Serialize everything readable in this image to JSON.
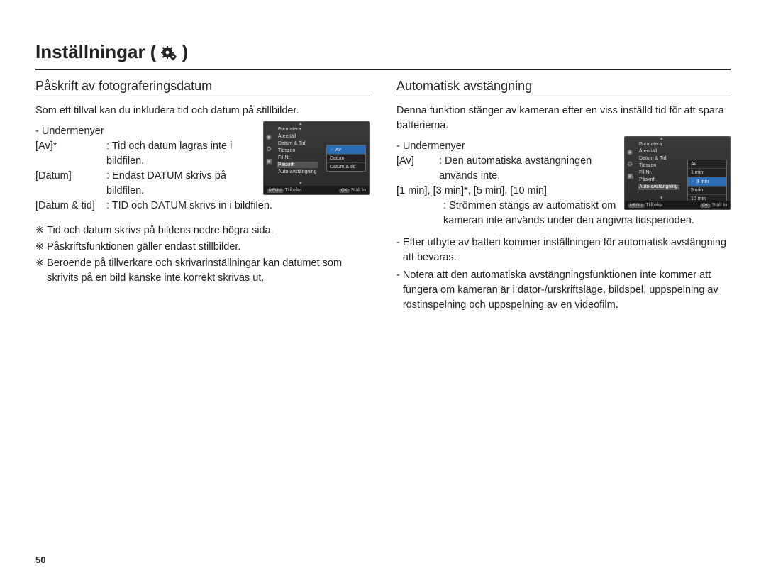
{
  "page_number": "50",
  "main_title": "Inställningar (",
  "main_title_close": ")",
  "gear_icon_color": "#222222",
  "left": {
    "heading": "Påskrift av fotograferingsdatum",
    "intro": "Som ett tillval kan du inkludera tid och datum på stillbilder.",
    "submenu_label": "- Undermenyer",
    "defs": [
      {
        "k": "[Av]*",
        "v": ": Tid och datum lagras inte i bildfilen."
      },
      {
        "k": "[Datum]",
        "v": ": Endast DATUM skrivs på bildfilen."
      },
      {
        "k": "[Datum & tid]",
        "v": ": TID och DATUM skrivs in i bildfilen."
      }
    ],
    "notes": [
      "Tid och datum skrivs på bildens nedre högra sida.",
      "Påskriftsfunktionen gäller endast stillbilder.",
      "Beroende på tillverkare och skrivarinställningar kan datumet som skrivits på en bild kanske inte korrekt skrivas ut."
    ],
    "note_mark": "※",
    "lcd": {
      "menu": [
        "Formatera",
        "Återställ",
        "Datum & Tid",
        "Tidszon",
        "Fil Nr.",
        "Påskrift",
        "Auto-avstängning"
      ],
      "menu_highlight_index": 5,
      "options": [
        {
          "label": "Av",
          "selected": true
        },
        {
          "label": "Datum",
          "selected": false
        },
        {
          "label": "Datum & tid",
          "selected": false
        }
      ],
      "bottom_left_badge": "MENU",
      "bottom_left": "Tillbaka",
      "bottom_right_badge": "OK",
      "bottom_right": "Ställ In"
    }
  },
  "right": {
    "heading": "Automatisk avstängning",
    "intro": "Denna funktion stänger av kameran efter en viss inställd tid för att spara batterierna.",
    "submenu_label": "- Undermenyer",
    "def_av_k": "[Av]",
    "def_av_v": ": Den automatiska avstängningen används inte.",
    "options_line": "[1 min], [3 min]*, [5 min], [10 min]",
    "options_desc": ": Strömmen stängs av automatiskt om kameran inte används under den angivna tidsperioden.",
    "bullets": [
      "Efter utbyte av batteri kommer inställningen för automatisk avstängning att bevaras.",
      "Notera att den automatiska avstängningsfunktionen inte kommer att fungera om kameran är i dator-/urskriftsläge, bildspel, uppspelning av röstinspelning och uppspelning av en videofilm."
    ],
    "bullet_mark": "-",
    "lcd": {
      "menu": [
        "Formatera",
        "Återställ",
        "Datum & Tid",
        "Tidszon",
        "Fil Nr.",
        "Påskrift",
        "Auto-avstängning"
      ],
      "menu_highlight_index": 6,
      "options": [
        {
          "label": "Av",
          "selected": false
        },
        {
          "label": "1 min",
          "selected": false
        },
        {
          "label": "3 min",
          "selected": true
        },
        {
          "label": "5 min",
          "selected": false
        },
        {
          "label": "10 min",
          "selected": false
        }
      ],
      "bottom_left_badge": "MENU",
      "bottom_left": "Tillbaka",
      "bottom_right_badge": "OK",
      "bottom_right": "Ställ In"
    }
  }
}
